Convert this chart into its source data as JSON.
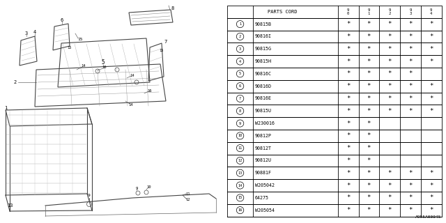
{
  "title": "A955A00045",
  "table_header": "PARTS CORD",
  "col_headers": [
    "9\n0",
    "9\n1",
    "9\n2",
    "9\n3",
    "9\n4"
  ],
  "rows": [
    {
      "num": 1,
      "part": "90815B",
      "marks": [
        1,
        1,
        1,
        1,
        1
      ]
    },
    {
      "num": 2,
      "part": "90816I",
      "marks": [
        1,
        1,
        1,
        1,
        1
      ]
    },
    {
      "num": 3,
      "part": "90815G",
      "marks": [
        1,
        1,
        1,
        1,
        1
      ]
    },
    {
      "num": 4,
      "part": "90815H",
      "marks": [
        1,
        1,
        1,
        1,
        1
      ]
    },
    {
      "num": 5,
      "part": "90816C",
      "marks": [
        1,
        1,
        1,
        1,
        0
      ]
    },
    {
      "num": 6,
      "part": "90816D",
      "marks": [
        1,
        1,
        1,
        1,
        1
      ]
    },
    {
      "num": 7,
      "part": "90816E",
      "marks": [
        1,
        1,
        1,
        1,
        1
      ]
    },
    {
      "num": 8,
      "part": "90815U",
      "marks": [
        1,
        1,
        1,
        1,
        1
      ]
    },
    {
      "num": 9,
      "part": "W230016",
      "marks": [
        1,
        1,
        0,
        0,
        0
      ]
    },
    {
      "num": 10,
      "part": "90812P",
      "marks": [
        1,
        1,
        0,
        0,
        0
      ]
    },
    {
      "num": 11,
      "part": "90812T",
      "marks": [
        1,
        1,
        0,
        0,
        0
      ]
    },
    {
      "num": 12,
      "part": "90812U",
      "marks": [
        1,
        1,
        0,
        0,
        0
      ]
    },
    {
      "num": 13,
      "part": "90881F",
      "marks": [
        1,
        1,
        1,
        1,
        1
      ]
    },
    {
      "num": 14,
      "part": "W205042",
      "marks": [
        1,
        1,
        1,
        1,
        1
      ]
    },
    {
      "num": 15,
      "part": "64275",
      "marks": [
        1,
        1,
        1,
        1,
        1
      ]
    },
    {
      "num": 16,
      "part": "W205054",
      "marks": [
        1,
        1,
        1,
        1,
        1
      ]
    }
  ],
  "bg_color": "#ffffff",
  "line_color": "#000000",
  "text_color": "#000000"
}
